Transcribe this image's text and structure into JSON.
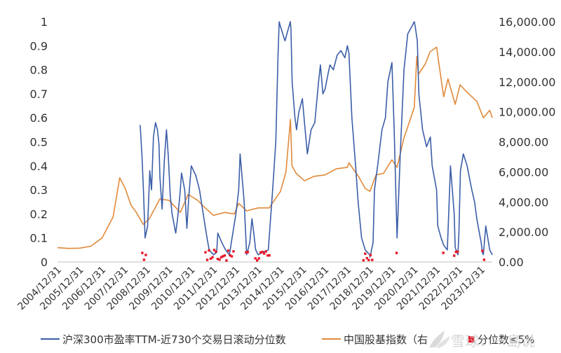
{
  "chart_data": {
    "type": "line",
    "title": "",
    "x_axis": {
      "ticks": [
        "2004/12/31",
        "2005/12/31",
        "2006/12/31",
        "2007/12/31",
        "2008/12/31",
        "2009/12/31",
        "2010/12/31",
        "2011/12/31",
        "2012/12/31",
        "2013/12/31",
        "2014/12/31",
        "2015/12/31",
        "2016/12/31",
        "2017/12/31",
        "2018/12/31",
        "2019/12/31",
        "2020/12/31",
        "2021/12/31",
        "2022/12/31",
        "2023/12/31"
      ],
      "range": [
        "2004/12/31",
        "2024/06/30"
      ]
    },
    "y_left": {
      "ticks": [
        "0",
        "0.1",
        "0.2",
        "0.3",
        "0.4",
        "0.5",
        "0.6",
        "0.7",
        "0.8",
        "0.9",
        "1"
      ],
      "range": [
        0,
        1
      ]
    },
    "y_right": {
      "ticks": [
        "0.00",
        "2,000.00",
        "4,000.00",
        "6,000.00",
        "8,000.00",
        "10,000.00",
        "12,000.00",
        "14,000.00",
        "16,000.00"
      ],
      "range": [
        0,
        16000
      ]
    },
    "grid": false,
    "legend_position": "bottom",
    "series": [
      {
        "name": "沪深300市盈率TTM-近730个交易日滚动分位数",
        "axis": "left",
        "color": "#3b5ea8",
        "x": [
          "2008/09/15",
          "2008/10/15",
          "2008/11/10",
          "2008/12/05",
          "2009/01/15",
          "2009/02/20",
          "2009/03/20",
          "2009/04/20",
          "2009/05/25",
          "2009/06/25",
          "2009/07/20",
          "2009/08/05",
          "2009/09/10",
          "2009/10/15",
          "2009/11/20",
          "2009/12/20",
          "2010/01/20",
          "2010/02/20",
          "2010/04/20",
          "2010/05/20",
          "2010/06/25",
          "2010/07/25",
          "2010/09/15",
          "2010/10/20",
          "2010/11/20",
          "2010/12/31",
          "2011/03/15",
          "2011/05/15",
          "2011/07/15",
          "2011/09/15",
          "2011/10/20",
          "2011/12/31",
          "2012/02/20",
          "2012/03/10",
          "2012/05/15",
          "2012/07/15",
          "2012/09/15",
          "2012/12/31",
          "2013/02/15",
          "2013/03/10",
          "2013/05/15",
          "2013/06/25",
          "2013/08/15",
          "2013/09/20",
          "2013/10/20",
          "2013/11/20",
          "2013/12/31",
          "2014/03/15",
          "2014/06/15",
          "2014/08/25",
          "2014/10/15",
          "2014/11/20",
          "2014/12/10",
          "2014/12/31",
          "2015/03/15",
          "2015/06/10",
          "2015/06/20",
          "2015/07/10",
          "2015/08/25",
          "2015/09/20",
          "2015/10/25",
          "2015/12/25",
          "2016/01/28",
          "2016/03/15",
          "2016/05/15",
          "2016/07/15",
          "2016/09/15",
          "2016/10/15",
          "2016/11/25",
          "2016/12/31",
          "2017/02/15",
          "2017/03/20",
          "2017/05/15",
          "2017/07/15",
          "2017/09/15",
          "2017/11/20",
          "2017/12/31",
          "2018/01/25",
          "2018/03/15",
          "2018/05/15",
          "2018/06/25",
          "2018/08/20",
          "2018/10/20",
          "2018/12/31",
          "2019/01/05",
          "2019/02/25",
          "2019/03/20",
          "2019/05/10",
          "2019/07/20",
          "2019/09/15",
          "2019/10/25",
          "2019/12/31",
          "2020/02/05",
          "2020/03/23",
          "2020/05/15",
          "2020/07/15",
          "2020/09/15",
          "2020/11/20",
          "2020/12/31",
          "2021/01/15",
          "2021/02/18",
          "2021/03/15",
          "2021/05/15",
          "2021/07/20",
          "2021/09/20",
          "2021/10/20",
          "2021/12/31",
          "2022/01/20",
          "2022/03/15",
          "2022/04/26",
          "2022/06/25",
          "2022/07/25",
          "2022/08/15",
          "2022/10/15",
          "2022/10/31",
          "2022/12/15",
          "2022/12/31",
          "2023/01/25",
          "2023/03/15",
          "2023/05/15",
          "2023/07/31",
          "2023/09/15",
          "2023/10/20",
          "2023/12/31",
          "2024/01/20",
          "2024/02/05",
          "2024/03/15",
          "2024/05/20",
          "2024/06/30"
        ],
        "y": [
          0.57,
          0.44,
          0.28,
          0.1,
          0.15,
          0.38,
          0.3,
          0.52,
          0.58,
          0.55,
          0.49,
          0.35,
          0.22,
          0.42,
          0.55,
          0.44,
          0.28,
          0.2,
          0.12,
          0.18,
          0.27,
          0.37,
          0.3,
          0.14,
          0.27,
          0.4,
          0.36,
          0.3,
          0.2,
          0.1,
          0.05,
          0.03,
          0.04,
          0.12,
          0.08,
          0.05,
          0.03,
          0.2,
          0.3,
          0.45,
          0.25,
          0.03,
          0.08,
          0.18,
          0.12,
          0.05,
          0.03,
          0.04,
          0.05,
          0.3,
          0.5,
          0.85,
          1.0,
          0.98,
          0.92,
          1.0,
          0.97,
          0.75,
          0.6,
          0.55,
          0.62,
          0.68,
          0.58,
          0.45,
          0.55,
          0.58,
          0.75,
          0.82,
          0.7,
          0.72,
          0.78,
          0.82,
          0.8,
          0.86,
          0.88,
          0.85,
          0.9,
          0.87,
          0.6,
          0.4,
          0.25,
          0.1,
          0.05,
          0.03,
          0.02,
          0.08,
          0.3,
          0.4,
          0.55,
          0.6,
          0.75,
          0.83,
          0.55,
          0.1,
          0.45,
          0.8,
          0.95,
          0.98,
          1.0,
          0.98,
          0.92,
          0.7,
          0.55,
          0.48,
          0.52,
          0.4,
          0.3,
          0.15,
          0.1,
          0.07,
          0.05,
          0.25,
          0.4,
          0.2,
          0.06,
          0.03,
          0.12,
          0.38,
          0.45,
          0.4,
          0.3,
          0.25,
          0.18,
          0.08,
          0.04,
          0.03,
          0.15,
          0.05,
          0.03
        ],
        "markers": {
          "color": "#e8182a",
          "note": "points with percentile <= 5%",
          "clusters": [
            [
              "2008/10/20",
              "2009/01/10"
            ],
            [
              "2011/08/20",
              "2012/12/10"
            ],
            [
              "2013/06/15",
              "2013/07/20"
            ],
            [
              "2013/11/15",
              "2014/07/15"
            ],
            [
              "2018/09/20",
              "2019/02/20"
            ],
            [
              "2020/03/15",
              "2020/03/30"
            ],
            [
              "2022/04/20",
              "2022/05/05"
            ],
            [
              "2022/10/15",
              "2023/01/05"
            ],
            [
              "2024/01/20",
              "2024/02/20"
            ]
          ]
        }
      },
      {
        "name": "中国股基指数（右）",
        "axis": "right",
        "color": "#e08a3a",
        "x": [
          "2004/12/31",
          "2005/06/30",
          "2005/12/31",
          "2006/06/30",
          "2006/12/31",
          "2007/03/31",
          "2007/06/30",
          "2007/10/16",
          "2008/01/15",
          "2008/04/15",
          "2008/07/15",
          "2008/11/04",
          "2009/02/15",
          "2009/08/04",
          "2009/12/31",
          "2010/07/05",
          "2010/11/10",
          "2011/04/15",
          "2011/08/15",
          "2011/12/31",
          "2012/06/30",
          "2012/12/04",
          "2013/02/15",
          "2013/06/25",
          "2013/12/31",
          "2014/06/30",
          "2014/12/31",
          "2015/03/31",
          "2015/06/12",
          "2015/07/08",
          "2015/09/15",
          "2016/01/28",
          "2016/06/30",
          "2016/12/31",
          "2017/06/30",
          "2017/12/31",
          "2018/01/25",
          "2018/06/30",
          "2018/10/18",
          "2019/01/04",
          "2019/04/15",
          "2019/08/15",
          "2019/12/31",
          "2020/03/23",
          "2020/07/10",
          "2020/12/31",
          "2021/02/10",
          "2021/03/10",
          "2021/06/30",
          "2021/09/15",
          "2021/12/31",
          "2022/04/26",
          "2022/07/05",
          "2022/10/31",
          "2023/01/20",
          "2023/05/15",
          "2023/10/20",
          "2024/02/05",
          "2024/05/20",
          "2024/06/30"
        ],
        "y": [
          950,
          900,
          920,
          1050,
          1600,
          2300,
          3000,
          5600,
          4900,
          3800,
          3300,
          2500,
          2900,
          4200,
          4100,
          3300,
          4500,
          4100,
          3600,
          3100,
          3300,
          3200,
          3900,
          3400,
          3600,
          3600,
          4700,
          6000,
          9500,
          6400,
          5900,
          5400,
          5700,
          5800,
          6200,
          6300,
          6600,
          5700,
          4900,
          4700,
          5800,
          5900,
          6800,
          6300,
          8200,
          10300,
          13700,
          12500,
          13200,
          14000,
          14300,
          11000,
          12200,
          10500,
          11800,
          11300,
          10700,
          9600,
          10100,
          9600
        ]
      }
    ]
  },
  "legend": {
    "series1_label": "沪深300市盈率TTM-近730个交易日滚动分位数",
    "series2_label": "中国股基指数（右",
    "series3_label": "分位数≤5%"
  },
  "watermark": {
    "text": "雪球：一島说"
  }
}
